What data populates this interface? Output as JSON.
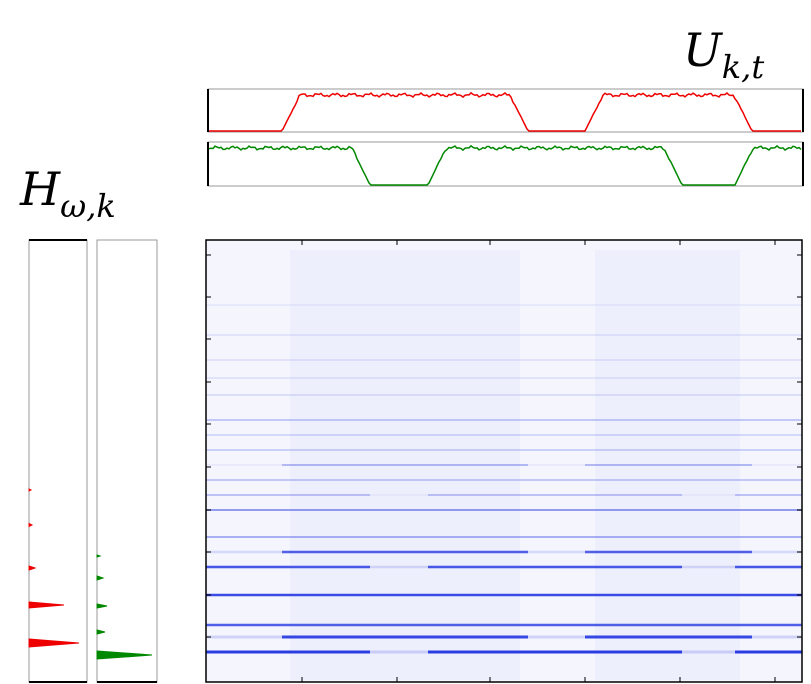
{
  "labels": {
    "activations": "U",
    "activations_subscript": "k,t",
    "templates": "H",
    "templates_subscript": "ω,k"
  }
}
